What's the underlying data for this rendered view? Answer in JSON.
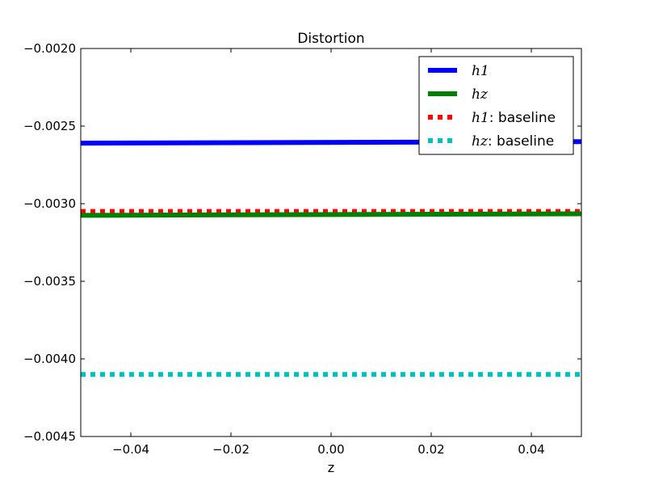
{
  "chart_data": {
    "type": "line",
    "title": "Distortion",
    "xlabel": "z",
    "ylabel": "",
    "xlim": [
      -0.05,
      0.05
    ],
    "ylim": [
      -0.0045,
      -0.002
    ],
    "x_ticks": [
      -0.04,
      -0.02,
      0.0,
      0.02,
      0.04
    ],
    "x_tick_labels": [
      "−0.04",
      "−0.02",
      "0.00",
      "0.02",
      "0.04"
    ],
    "y_ticks": [
      -0.002,
      -0.0025,
      -0.003,
      -0.0035,
      -0.004,
      -0.0045
    ],
    "y_tick_labels": [
      "−0.0020",
      "−0.0025",
      "−0.0030",
      "−0.0035",
      "−0.0040",
      "−0.0045"
    ],
    "grid": false,
    "legend_position": "top-right",
    "series": [
      {
        "name": "h1",
        "legend_math": "h1",
        "legend_suffix": "",
        "color": "#0000ff",
        "style": "solid",
        "x": [
          -0.05,
          0.05
        ],
        "y": [
          -0.00261,
          -0.0026
        ]
      },
      {
        "name": "hz",
        "legend_math": "hz",
        "legend_suffix": "",
        "color": "#008000",
        "style": "solid",
        "x": [
          -0.05,
          0.05
        ],
        "y": [
          -0.003075,
          -0.003065
        ]
      },
      {
        "name": "h1: baseline",
        "legend_math": "h1",
        "legend_suffix": ": baseline",
        "color": "#ff0000",
        "style": "dotted",
        "x": [
          -0.05,
          0.05
        ],
        "y": [
          -0.00305,
          -0.00305
        ]
      },
      {
        "name": "hz: baseline",
        "legend_math": "hz",
        "legend_suffix": ": baseline",
        "color": "#00bfbf",
        "style": "dotted",
        "x": [
          -0.05,
          0.05
        ],
        "y": [
          -0.0041,
          -0.0041
        ]
      }
    ]
  }
}
